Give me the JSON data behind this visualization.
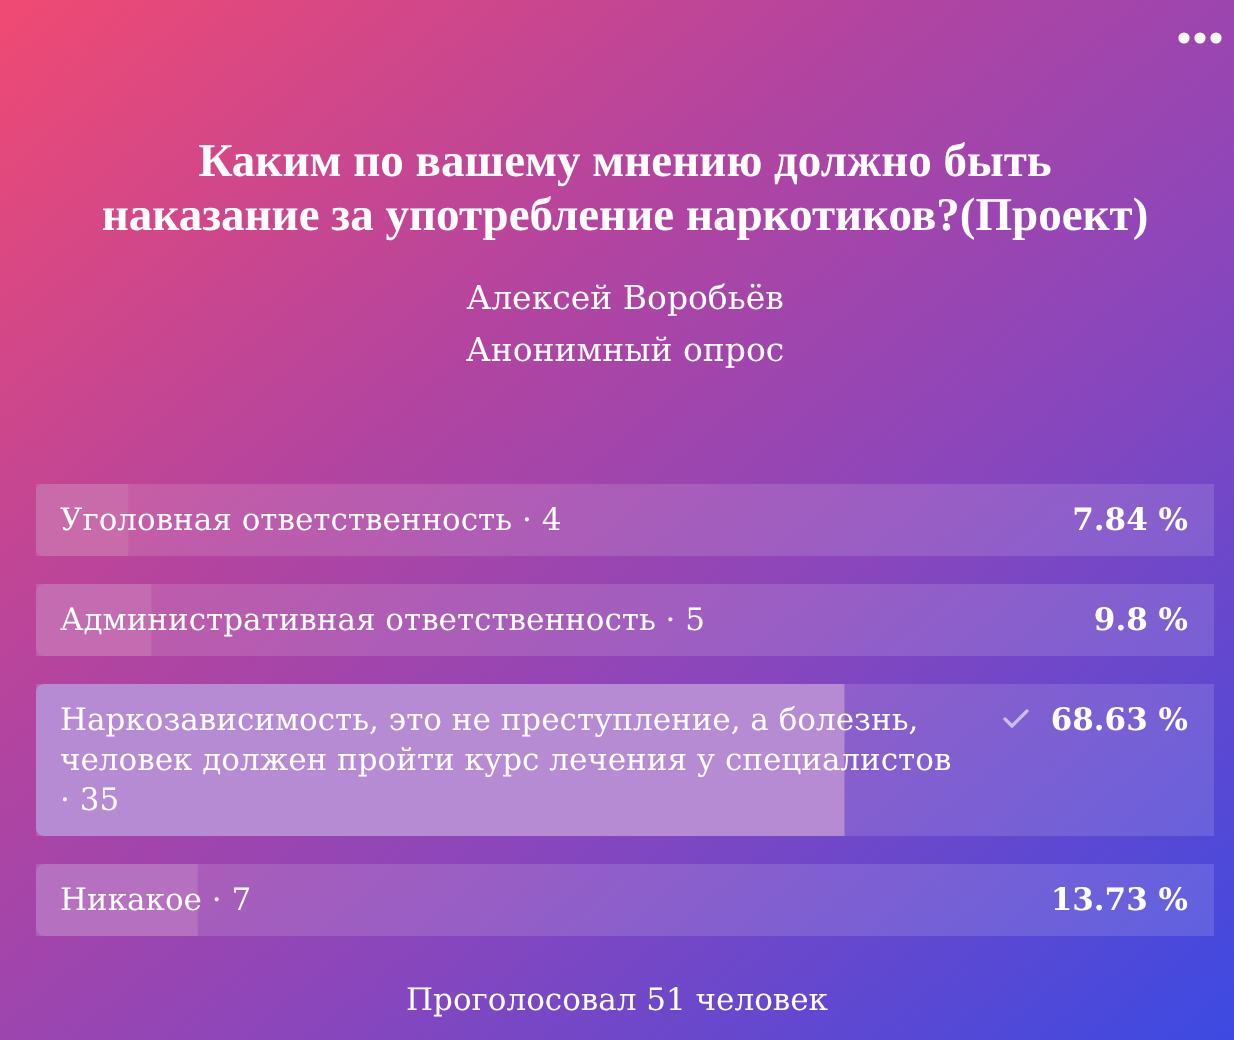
{
  "chart_data": {
    "type": "bar",
    "orientation": "horizontal",
    "title": "Каким по вашему мнению должно быть наказание за употребление наркотиков?(Проект)",
    "subtitle": "Алексей Воробьёв",
    "categories": [
      "Уголовная ответственность · 4",
      "Административная ответственность · 5",
      "Наркозависимость, это не преступление, а болезнь, человек должен пройти курс лечения у специалистов · 35",
      "Никакое · 7"
    ],
    "values": [
      7.84,
      9.8,
      68.63,
      13.73
    ],
    "value_labels": [
      "7.84 %",
      "9.8 %",
      "68.63 %",
      "13.73 %"
    ],
    "colors": [
      "#c96aab",
      "#c46cb2",
      "#b78bd3",
      "#b570bf"
    ],
    "tick_labels": "y",
    "annotations": [
      "Анонимный опрос",
      "Проголосовал 51 человек"
    ]
  }
}
